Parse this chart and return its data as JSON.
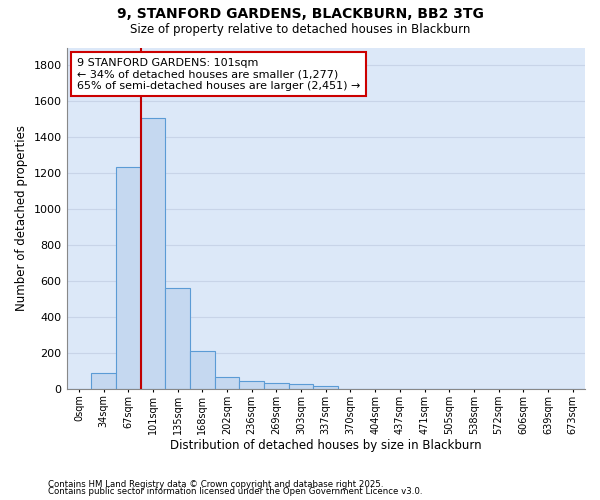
{
  "title": "9, STANFORD GARDENS, BLACKBURN, BB2 3TG",
  "subtitle": "Size of property relative to detached houses in Blackburn",
  "xlabel": "Distribution of detached houses by size in Blackburn",
  "ylabel": "Number of detached properties",
  "footnote1": "Contains HM Land Registry data © Crown copyright and database right 2025.",
  "footnote2": "Contains public sector information licensed under the Open Government Licence v3.0.",
  "categories": [
    "0sqm",
    "34sqm",
    "67sqm",
    "101sqm",
    "135sqm",
    "168sqm",
    "202sqm",
    "236sqm",
    "269sqm",
    "303sqm",
    "337sqm",
    "370sqm",
    "404sqm",
    "437sqm",
    "471sqm",
    "505sqm",
    "538sqm",
    "572sqm",
    "606sqm",
    "639sqm",
    "673sqm"
  ],
  "values": [
    0,
    90,
    1235,
    1510,
    560,
    210,
    65,
    45,
    35,
    27,
    15,
    0,
    0,
    0,
    0,
    0,
    0,
    0,
    0,
    0,
    0
  ],
  "bar_color": "#c5d8f0",
  "bar_edge_color": "#5b9bd5",
  "grid_color": "#c8d4e8",
  "plot_bg_color": "#dce8f8",
  "fig_bg_color": "#ffffff",
  "vline_x": 2.5,
  "vline_color": "#c00000",
  "annotation_text": "9 STANFORD GARDENS: 101sqm\n← 34% of detached houses are smaller (1,277)\n65% of semi-detached houses are larger (2,451) →",
  "annotation_box_color": "white",
  "annotation_box_edge_color": "#cc0000",
  "ylim": [
    0,
    1900
  ],
  "yticks": [
    0,
    200,
    400,
    600,
    800,
    1000,
    1200,
    1400,
    1600,
    1800
  ]
}
